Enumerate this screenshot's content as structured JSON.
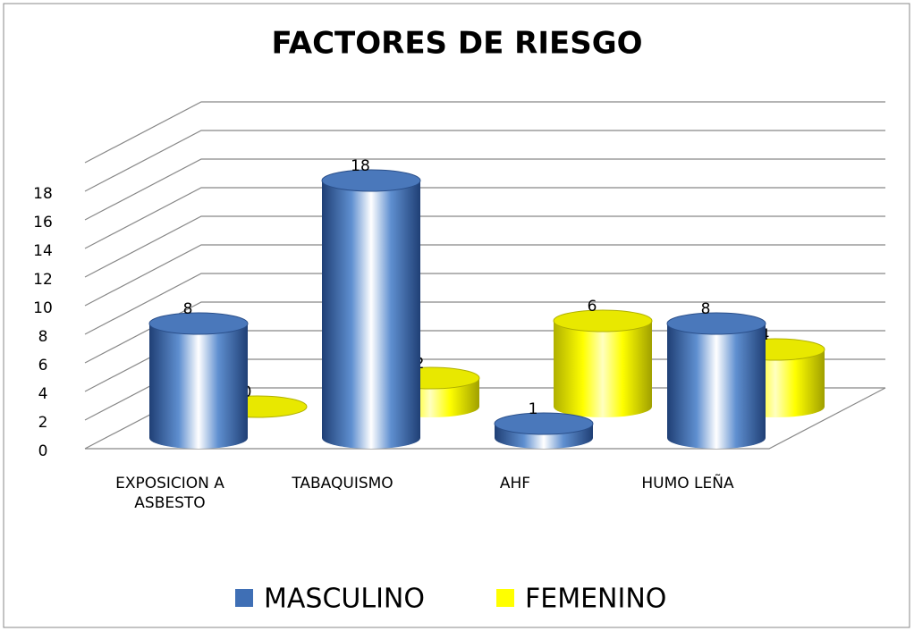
{
  "chart_data": {
    "type": "bar3d",
    "title": "FACTORES DE RIESGO",
    "categories": [
      "EXPOSICION A ASBESTO",
      "TABAQUISMO",
      "AHF",
      "HUMO LEÑA"
    ],
    "series": [
      {
        "name": "MASCULINO",
        "color": "#3f6fb5",
        "values": [
          8,
          18,
          1,
          8
        ]
      },
      {
        "name": "FEMENINO",
        "color": "#ffff00",
        "values": [
          0,
          2,
          6,
          4
        ]
      }
    ],
    "ylim": [
      0,
      20
    ],
    "yticks": [
      0,
      2,
      4,
      6,
      8,
      10,
      12,
      14,
      16,
      18
    ],
    "grid": true,
    "legend": "bottom"
  }
}
